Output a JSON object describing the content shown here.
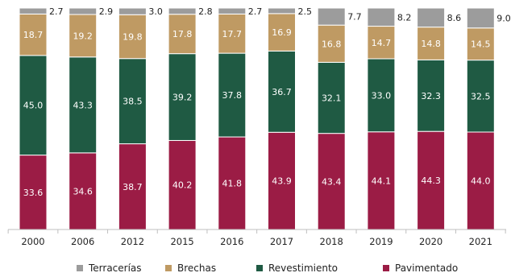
{
  "chart_data": {
    "type": "bar",
    "stacked": true,
    "normalized": true,
    "categories": [
      "2000",
      "2006",
      "2012",
      "2015",
      "2016",
      "2017",
      "2018",
      "2019",
      "2020",
      "2021"
    ],
    "series": [
      {
        "name": "Pavimentado",
        "color": "#9b1c45",
        "values": [
          33.6,
          34.6,
          38.7,
          40.2,
          41.8,
          43.9,
          43.4,
          44.1,
          44.3,
          44.0
        ]
      },
      {
        "name": "Revestimiento",
        "color": "#1f5a43",
        "values": [
          45.0,
          43.3,
          38.5,
          39.2,
          37.8,
          36.7,
          32.1,
          33.0,
          32.3,
          32.5
        ]
      },
      {
        "name": "Brechas",
        "color": "#bf9a63",
        "values": [
          18.7,
          19.2,
          19.8,
          17.8,
          17.7,
          16.9,
          16.8,
          14.7,
          14.8,
          14.5
        ]
      },
      {
        "name": "Terracerías",
        "color": "#9c9c9c",
        "values": [
          2.7,
          2.9,
          3.0,
          2.8,
          2.7,
          2.5,
          7.7,
          8.2,
          8.6,
          9.0
        ]
      }
    ],
    "legend": {
      "position": "bottom",
      "order": [
        "Terracerías",
        "Brechas",
        "Revestimiento",
        "Pavimentado"
      ]
    },
    "ylim": [
      0,
      100
    ],
    "grid": false,
    "title": "",
    "xlabel": "",
    "ylabel": ""
  }
}
